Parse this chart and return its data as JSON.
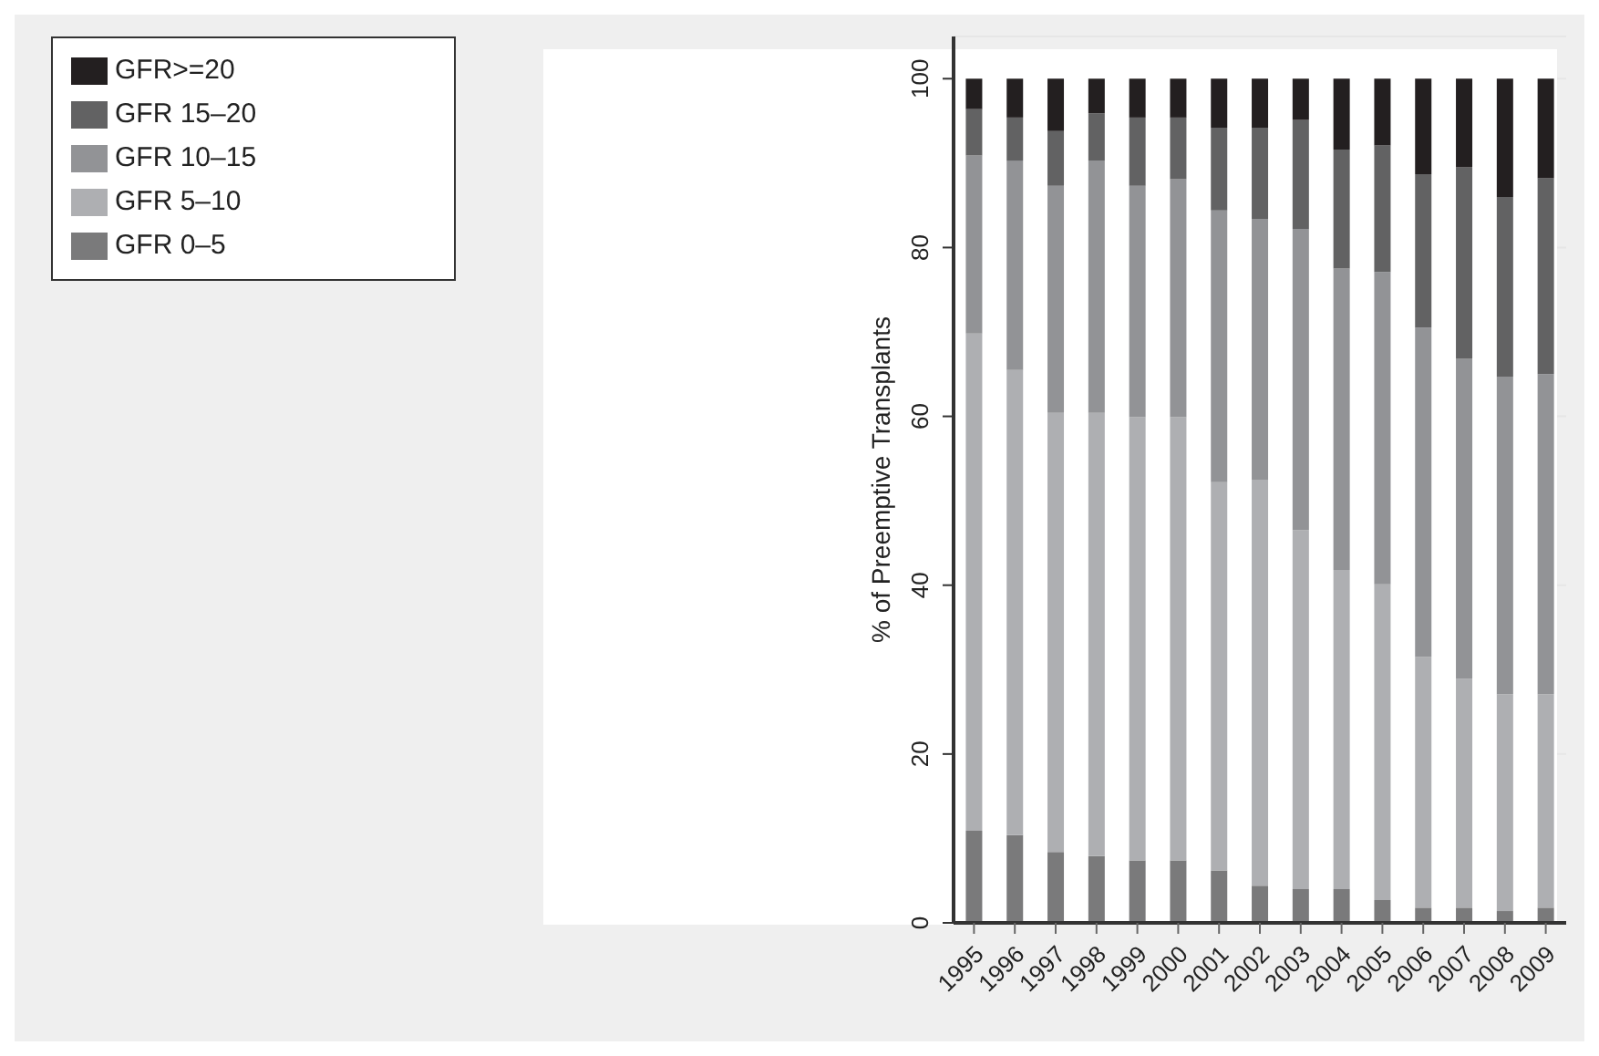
{
  "chart_data": {
    "type": "bar",
    "stacked": true,
    "ylabel": "% of Preemptive Transplants",
    "categories": [
      "1995",
      "1996",
      "1997",
      "1998",
      "1999",
      "2000",
      "2001",
      "2002",
      "2003",
      "2004",
      "2005",
      "2006",
      "2007",
      "2008",
      "2009"
    ],
    "series": [
      {
        "name": "GFR 0–5",
        "color": "#7a7a7b",
        "values": [
          10.9,
          10.4,
          8.4,
          7.9,
          7.4,
          7.4,
          6.2,
          4.4,
          4.0,
          4.0,
          2.7,
          1.8,
          1.8,
          1.4,
          1.8
        ]
      },
      {
        "name": "GFR 5–10",
        "color": "#aeafb2",
        "values": [
          58.9,
          55.1,
          52.0,
          52.5,
          52.5,
          52.5,
          46.0,
          48.1,
          42.5,
          37.8,
          37.4,
          29.7,
          27.1,
          25.7,
          25.3
        ]
      },
      {
        "name": "GFR 10–15",
        "color": "#929396",
        "values": [
          21.1,
          24.8,
          26.9,
          29.9,
          27.4,
          28.2,
          32.2,
          30.9,
          35.7,
          35.7,
          37.0,
          39.0,
          37.9,
          37.6,
          37.9
        ]
      },
      {
        "name": "GFR 15–20",
        "color": "#626263",
        "values": [
          5.5,
          5.1,
          6.5,
          5.6,
          8.1,
          7.3,
          9.8,
          10.8,
          12.9,
          14.1,
          15.0,
          18.2,
          22.7,
          21.3,
          23.2
        ]
      },
      {
        "name": "GFR>=20",
        "color": "#231f20",
        "values": [
          3.6,
          4.6,
          6.2,
          4.1,
          4.6,
          4.6,
          5.8,
          5.8,
          4.9,
          8.4,
          7.9,
          11.3,
          10.5,
          14.0,
          11.8
        ]
      }
    ],
    "ylim": [
      0,
      105
    ],
    "yticks": [
      0,
      20,
      40,
      60,
      80,
      100
    ],
    "grid": "y",
    "legend": "top left"
  }
}
